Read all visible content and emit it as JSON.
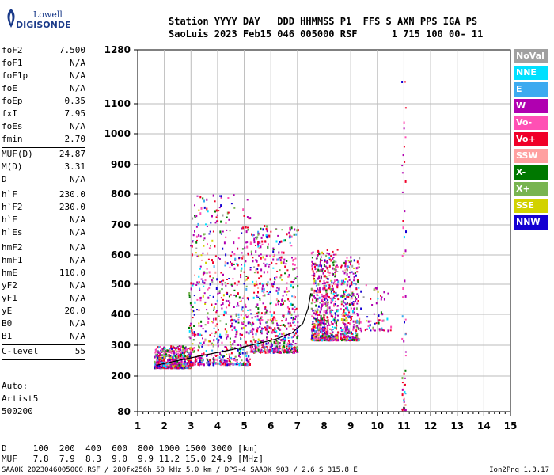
{
  "logo": {
    "line1": "Lowell",
    "line2": "DIGISONDE"
  },
  "header": {
    "row1": "Station YYYY DAY   DDD HHMMSS P1  FFS S AXN PPS IGA PS",
    "row2": "SaoLuis 2023 Feb15 046 005000 RSF      1 715 100 00- 11"
  },
  "params": [
    {
      "name": "foF2",
      "value": "7.500"
    },
    {
      "name": "foF1",
      "value": "N/A"
    },
    {
      "name": "foF1p",
      "value": "N/A"
    },
    {
      "name": "foE",
      "value": "N/A"
    },
    {
      "name": "foEp",
      "value": "0.35"
    },
    {
      "name": "fxI",
      "value": "7.95"
    },
    {
      "name": "foEs",
      "value": "N/A"
    },
    {
      "name": "fmin",
      "value": "2.70"
    },
    {
      "name": "MUF(D)",
      "value": "24.87"
    },
    {
      "name": "M(D)",
      "value": "3.31"
    },
    {
      "name": "D",
      "value": "N/A"
    },
    {
      "name": "h`F",
      "value": "230.0"
    },
    {
      "name": "h`F2",
      "value": "230.0"
    },
    {
      "name": "h`E",
      "value": "N/A"
    },
    {
      "name": "h`Es",
      "value": "N/A"
    },
    {
      "name": "hmF2",
      "value": "N/A"
    },
    {
      "name": "hmF1",
      "value": "N/A"
    },
    {
      "name": "hmE",
      "value": "110.0"
    },
    {
      "name": "yF2",
      "value": "N/A"
    },
    {
      "name": "yF1",
      "value": "N/A"
    },
    {
      "name": "yE",
      "value": "20.0"
    },
    {
      "name": "B0",
      "value": "N/A"
    },
    {
      "name": "B1",
      "value": "N/A"
    },
    {
      "name": "C-level",
      "value": "55"
    }
  ],
  "auto": {
    "line1": "Auto:",
    "line2": "Artist5",
    "line3": "500200"
  },
  "legend": [
    {
      "label": "NoVal",
      "color": "#a0a0a0"
    },
    {
      "label": "NNE",
      "color": "#00e0ff"
    },
    {
      "label": "E",
      "color": "#3caaf0"
    },
    {
      "label": "W",
      "color": "#b000b0"
    },
    {
      "label": "Vo-",
      "color": "#ff50b4"
    },
    {
      "label": "Vo+",
      "color": "#f00028"
    },
    {
      "label": "SSW",
      "color": "#ffa0a0"
    },
    {
      "label": "X-",
      "color": "#007800"
    },
    {
      "label": "X+",
      "color": "#78b450"
    },
    {
      "label": "SSE",
      "color": "#d2d200"
    },
    {
      "label": "NNW",
      "color": "#1400d2"
    }
  ],
  "muf_table": {
    "row_d": "D     100  200  400  600  800 1000 1500 3000 [km]",
    "row_m": "MUF   7.8  7.9  8.3  9.0  9.9 11.2 15.0 24.9 [MHz]"
  },
  "footer": {
    "left": "SAA0K_2023046005000.RSF / 280fx256h 50 kHz 5.0 km / DPS-4 SAA0K 903 / 2.6 S 315.8 E",
    "right": "Ion2Png 1.3.17"
  },
  "chart_data": {
    "type": "scatter",
    "xlabel": "",
    "ylabel": "",
    "xlim": [
      1,
      15
    ],
    "ylim": [
      80,
      1280
    ],
    "x_ticks": [
      "1",
      "2",
      "3",
      "4",
      "5",
      "6",
      "7",
      "8",
      "9",
      "10",
      "11",
      "12",
      "13",
      "14",
      "15"
    ],
    "y_ticks": [
      "80",
      "200",
      "300",
      "400",
      "500",
      "600",
      "700",
      "800",
      "900",
      "1000",
      "1100",
      "1280"
    ],
    "y_scale": "nonlinear (ionogram virtual height)",
    "grid": true,
    "trace": [
      {
        "x": 1.7,
        "y": 235
      },
      {
        "x": 2.5,
        "y": 250
      },
      {
        "x": 3.5,
        "y": 268
      },
      {
        "x": 4.5,
        "y": 285
      },
      {
        "x": 5.5,
        "y": 305
      },
      {
        "x": 6.2,
        "y": 320
      },
      {
        "x": 6.8,
        "y": 340
      },
      {
        "x": 7.2,
        "y": 370
      },
      {
        "x": 7.4,
        "y": 420
      },
      {
        "x": 7.5,
        "y": 470
      }
    ],
    "echo_clusters": [
      {
        "x_min": 1.6,
        "x_max": 3.0,
        "y_min": 230,
        "y_max": 300,
        "density": "high"
      },
      {
        "x_min": 2.9,
        "x_max": 5.2,
        "y_min": 240,
        "y_max": 800,
        "density": "high"
      },
      {
        "x_min": 5.2,
        "x_max": 7.0,
        "y_min": 280,
        "y_max": 700,
        "density": "high"
      },
      {
        "x_min": 7.5,
        "x_max": 8.5,
        "y_min": 320,
        "y_max": 620,
        "density": "high"
      },
      {
        "x_min": 8.6,
        "x_max": 9.3,
        "y_min": 320,
        "y_max": 600,
        "density": "medium"
      },
      {
        "x_min": 9.3,
        "x_max": 10.5,
        "y_min": 350,
        "y_max": 500,
        "density": "low"
      },
      {
        "x_min": 10.9,
        "x_max": 11.05,
        "y_min": 90,
        "y_max": 1200,
        "density": "low"
      }
    ]
  }
}
